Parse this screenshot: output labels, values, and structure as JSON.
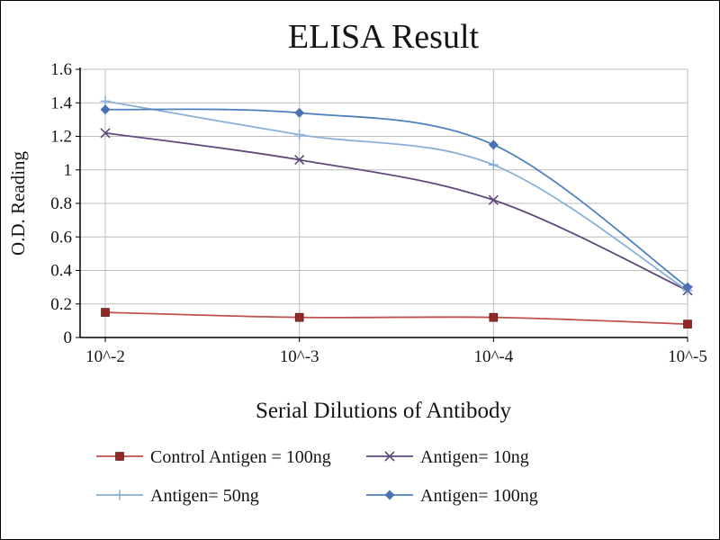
{
  "chart_data": {
    "type": "line",
    "title": "ELISA Result",
    "xlabel": "Serial Dilutions  of Antibody",
    "ylabel": "O.D. Reading",
    "categories": [
      "10^-2",
      "10^-3",
      "10^-4",
      "10^-5"
    ],
    "ylim": [
      0,
      1.6
    ],
    "ytick_step": 0.2,
    "grid": true,
    "grid_color": "#bdbdbd",
    "axis_color": "#000000",
    "background_color": "#ffffff",
    "legend_position": "bottom",
    "series": [
      {
        "name": "Control Antigen = 100ng",
        "marker": "square",
        "line_color": "#c0504d",
        "marker_color": "#942824",
        "values": [
          0.15,
          0.12,
          0.12,
          0.08
        ]
      },
      {
        "name": "Antigen= 10ng",
        "marker": "x",
        "line_color": "#5f497a",
        "marker_color": "#5f497a",
        "values": [
          1.22,
          1.06,
          0.82,
          0.28
        ]
      },
      {
        "name": "Antigen= 50ng",
        "marker": "plus",
        "line_color": "#8ab0d9",
        "marker_color": "#8ab0d9",
        "values": [
          1.41,
          1.21,
          1.03,
          0.28
        ]
      },
      {
        "name": "Antigen= 100ng",
        "marker": "diamond",
        "line_color": "#4f81bd",
        "marker_color": "#4a72b2",
        "values": [
          1.36,
          1.34,
          1.15,
          0.3
        ]
      }
    ]
  }
}
